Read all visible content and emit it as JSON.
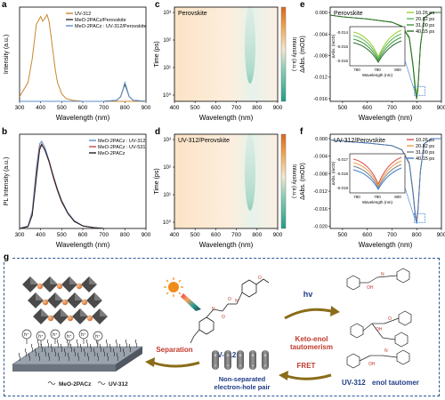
{
  "panels": {
    "a": {
      "label": "a",
      "xlabel": "Wavelength (nm)",
      "ylabel": "Intensity (a.u.)",
      "legend": [
        "UV-312",
        "MeO-2PACz/Perovskite",
        "MeO-2PACz : UV-312/Perovskite"
      ],
      "colors": [
        "#c8852d",
        "#333333",
        "#5b8fc9"
      ],
      "xticks": [
        "300",
        "400",
        "500",
        "600",
        "700",
        "800",
        "900"
      ]
    },
    "b": {
      "label": "b",
      "xlabel": "Wavelength (nm)",
      "ylabel": "PL Intensity (a.u.)",
      "legend": [
        "MeO-2PACz : UV-312",
        "MeO-2PACz : UV-531",
        "MeO-2PACz"
      ],
      "colors": [
        "#5b8fc9",
        "#c0504d",
        "#222222"
      ],
      "xticks": [
        "300",
        "400",
        "500",
        "600",
        "700",
        "800",
        "900"
      ]
    },
    "c": {
      "label": "c",
      "title": "Perovskite",
      "xlabel": "Wavelength (nm)",
      "ylabel": "Time (ps)",
      "colorbar_label": "Intensity (a.u.)",
      "xticks": [
        "400",
        "500",
        "600",
        "700",
        "800",
        "900"
      ],
      "yticks": [
        "10³",
        "10²",
        "10¹",
        "10⁰"
      ]
    },
    "d": {
      "label": "d",
      "title": "UV-312/Perovskite",
      "xlabel": "Wavelength (nm)",
      "ylabel": "Time (ps)",
      "colorbar_label": "Intensity (a.u.)",
      "xticks": [
        "400",
        "500",
        "600",
        "700",
        "800",
        "900"
      ],
      "yticks": [
        "10³",
        "10²",
        "10¹",
        "10⁰"
      ]
    },
    "e": {
      "label": "e",
      "title": "Perovskite",
      "xlabel": "Wavelength (nm)",
      "ylabel": "ΔAbs. (mOD)",
      "yticks": [
        "0.000",
        "-0.004",
        "-0.008",
        "-0.012",
        "-0.016"
      ],
      "xticks": [
        "500",
        "600",
        "700",
        "800",
        "900"
      ],
      "legend": [
        "10.26 ps",
        "20.82 ps",
        "31.00 ps",
        "40.15 ps"
      ],
      "colors": [
        "#9acd32",
        "#5fb85f",
        "#3a9a3a",
        "#2e6b2e"
      ],
      "inset_yticks": [
        "-0.014",
        "-0.015",
        "-0.016"
      ],
      "inset_xticks": [
        "780",
        "790",
        "800"
      ],
      "inset_xlabel": "Wavelength (nm)",
      "inset_ylabel": "ΔAbs. (mOD)"
    },
    "f": {
      "label": "f",
      "title": "UV-312/Perovskite",
      "xlabel": "Wavelength (nm)",
      "ylabel": "ΔAbs. (mOD)",
      "yticks": [
        "0.000",
        "-0.004",
        "-0.008",
        "-0.012",
        "-0.016",
        "-0.020"
      ],
      "xticks": [
        "500",
        "600",
        "700",
        "800",
        "900"
      ],
      "legend": [
        "10.26 ps",
        "20.82 ps",
        "31.00 ps",
        "40.15 ps"
      ],
      "colors": [
        "#d9534f",
        "#f0a04b",
        "#7f7f7f",
        "#3d7cc9"
      ],
      "inset_yticks": [
        "-0.017",
        "-0.018",
        "-0.019"
      ],
      "inset_xticks": [
        "780",
        "790",
        "800"
      ],
      "inset_xlabel": "Wavelength (nm)",
      "inset_ylabel": "ΔAbs. (mOD)"
    },
    "g": {
      "label": "g",
      "uv312_label": "UV-312",
      "hv_label": "hv",
      "keto_label": "Keto-enol\ntautomerism",
      "keto_line1": "Keto-enol",
      "keto_line2": "tautomerism",
      "fret_label": "FRET",
      "separation_label": "Separation",
      "nonsep_line1": "Non-separated",
      "nonsep_line2": "electron-hole pair",
      "meo_label": "MeO-2PACz",
      "uv312_small": "UV-312",
      "tautomer_uv": "UV-312",
      "tautomer_rest": "enol tautomer",
      "hplus": "h⁺",
      "oh": "OH",
      "o": "O",
      "n": "N",
      "h": "H"
    }
  },
  "chart_data": [
    {
      "type": "line",
      "title": "",
      "xlabel": "Wavelength (nm)",
      "ylabel": "Intensity (a.u.)",
      "xlim": [
        300,
        900
      ],
      "series": [
        {
          "name": "UV-312",
          "x": [
            300,
            340,
            360,
            380,
            400,
            410,
            420,
            430,
            440,
            450,
            460,
            470,
            480,
            500,
            520,
            550,
            600,
            700,
            900
          ],
          "y": [
            0.05,
            0.2,
            0.45,
            0.82,
            0.9,
            0.85,
            0.88,
            0.92,
            0.85,
            0.68,
            0.5,
            0.33,
            0.2,
            0.08,
            0.03,
            0.01,
            0,
            0,
            0
          ]
        },
        {
          "name": "MeO-2PACz/Perovskite",
          "x": [
            300,
            600,
            700,
            760,
            780,
            790,
            800,
            810,
            820,
            840,
            900
          ],
          "y": [
            0,
            0,
            0,
            0.01,
            0.05,
            0.12,
            0.18,
            0.12,
            0.05,
            0.01,
            0
          ]
        },
        {
          "name": "MeO-2PACz : UV-312/Perovskite",
          "x": [
            300,
            600,
            700,
            760,
            780,
            790,
            800,
            810,
            820,
            840,
            900
          ],
          "y": [
            0,
            0,
            0,
            0.01,
            0.05,
            0.12,
            0.2,
            0.13,
            0.05,
            0.01,
            0
          ]
        }
      ]
    },
    {
      "type": "line",
      "title": "",
      "xlabel": "Wavelength (nm)",
      "ylabel": "PL Intensity (a.u.)",
      "xlim": [
        300,
        900
      ],
      "series": [
        {
          "name": "MeO-2PACz : UV-312",
          "x": [
            300,
            340,
            360,
            380,
            395,
            405,
            420,
            440,
            460,
            480,
            500,
            530,
            560,
            600,
            650,
            700
          ],
          "y": [
            0,
            0.03,
            0.2,
            0.7,
            0.97,
            1.0,
            0.93,
            0.78,
            0.6,
            0.45,
            0.32,
            0.18,
            0.09,
            0.03,
            0.01,
            0
          ]
        },
        {
          "name": "MeO-2PACz : UV-531",
          "x": [
            300,
            340,
            360,
            380,
            395,
            405,
            420,
            440,
            460,
            480,
            500,
            530,
            560,
            600,
            650,
            700
          ],
          "y": [
            0,
            0.02,
            0.17,
            0.62,
            0.93,
            0.97,
            0.9,
            0.76,
            0.58,
            0.43,
            0.3,
            0.17,
            0.08,
            0.03,
            0.01,
            0
          ]
        },
        {
          "name": "MeO-2PACz",
          "x": [
            300,
            340,
            360,
            380,
            395,
            405,
            420,
            440,
            460,
            480,
            500,
            530,
            560,
            600,
            650,
            700
          ],
          "y": [
            0,
            0.02,
            0.15,
            0.58,
            0.9,
            0.96,
            0.9,
            0.77,
            0.6,
            0.44,
            0.31,
            0.17,
            0.08,
            0.03,
            0.01,
            0
          ]
        }
      ]
    },
    {
      "type": "line",
      "title": "Perovskite",
      "xlabel": "Wavelength (nm)",
      "ylabel": "ΔAbs. (mOD)",
      "xlim": [
        450,
        900
      ],
      "ylim": [
        -0.0165,
        0.001
      ],
      "series": [
        {
          "name": "10.26 ps",
          "x": [
            450,
            500,
            600,
            700,
            740,
            770,
            785,
            795,
            800,
            805,
            815,
            830,
            860,
            900
          ],
          "y": [
            -0.0005,
            -0.0008,
            -0.0012,
            -0.0018,
            -0.0025,
            -0.0045,
            -0.0095,
            -0.0138,
            -0.015,
            -0.0135,
            -0.006,
            -0.001,
            0,
            0
          ]
        },
        {
          "name": "20.82 ps",
          "x": [
            450,
            500,
            600,
            700,
            740,
            770,
            785,
            795,
            800,
            805,
            815,
            830,
            860,
            900
          ],
          "y": [
            -0.0005,
            -0.0008,
            -0.0012,
            -0.0018,
            -0.0025,
            -0.0046,
            -0.0097,
            -0.0142,
            -0.0154,
            -0.0138,
            -0.006,
            -0.001,
            0,
            0
          ]
        },
        {
          "name": "31.00 ps",
          "x": [
            450,
            500,
            600,
            700,
            740,
            770,
            785,
            795,
            800,
            805,
            815,
            830,
            860,
            900
          ],
          "y": [
            -0.0005,
            -0.0008,
            -0.0012,
            -0.0018,
            -0.0026,
            -0.0047,
            -0.0099,
            -0.0146,
            -0.0158,
            -0.0141,
            -0.0062,
            -0.001,
            0,
            0
          ]
        },
        {
          "name": "40.15 ps",
          "x": [
            450,
            500,
            600,
            700,
            740,
            770,
            785,
            795,
            800,
            805,
            815,
            830,
            860,
            900
          ],
          "y": [
            -0.0005,
            -0.0008,
            -0.0012,
            -0.0018,
            -0.0026,
            -0.0048,
            -0.0101,
            -0.0149,
            -0.0161,
            -0.0143,
            -0.0063,
            -0.001,
            0,
            0
          ]
        }
      ]
    },
    {
      "type": "line",
      "title": "UV-312/Perovskite",
      "xlabel": "Wavelength (nm)",
      "ylabel": "ΔAbs. (mOD)",
      "xlim": [
        450,
        900
      ],
      "ylim": [
        -0.0205,
        0.001
      ],
      "series": [
        {
          "name": "10.26 ps",
          "x": [
            450,
            500,
            600,
            700,
            740,
            770,
            785,
            795,
            800,
            805,
            815,
            830,
            860,
            900
          ],
          "y": [
            -0.0003,
            -0.0006,
            -0.001,
            -0.0016,
            -0.0025,
            -0.0055,
            -0.012,
            -0.0175,
            -0.0185,
            -0.016,
            -0.0072,
            -0.0012,
            0,
            0
          ]
        },
        {
          "name": "20.82 ps",
          "x": [
            450,
            500,
            600,
            700,
            740,
            770,
            785,
            795,
            800,
            805,
            815,
            830,
            860,
            900
          ],
          "y": [
            -0.0003,
            -0.0006,
            -0.001,
            -0.0016,
            -0.0025,
            -0.0056,
            -0.0122,
            -0.0178,
            -0.0189,
            -0.0163,
            -0.0073,
            -0.0012,
            0,
            0
          ]
        },
        {
          "name": "31.00 ps",
          "x": [
            450,
            500,
            600,
            700,
            740,
            770,
            785,
            795,
            800,
            805,
            815,
            830,
            860,
            900
          ],
          "y": [
            -0.0003,
            -0.0006,
            -0.001,
            -0.0016,
            -0.0026,
            -0.0057,
            -0.0124,
            -0.018,
            -0.0191,
            -0.0165,
            -0.0074,
            -0.0012,
            0,
            0
          ]
        },
        {
          "name": "40.15 ps",
          "x": [
            450,
            500,
            600,
            700,
            740,
            770,
            785,
            795,
            800,
            805,
            815,
            830,
            860,
            900
          ],
          "y": [
            -0.0003,
            -0.0006,
            -0.001,
            -0.0016,
            -0.0026,
            -0.0058,
            -0.0126,
            -0.0183,
            -0.0194,
            -0.0167,
            -0.0075,
            -0.0012,
            0,
            0
          ]
        }
      ]
    }
  ]
}
